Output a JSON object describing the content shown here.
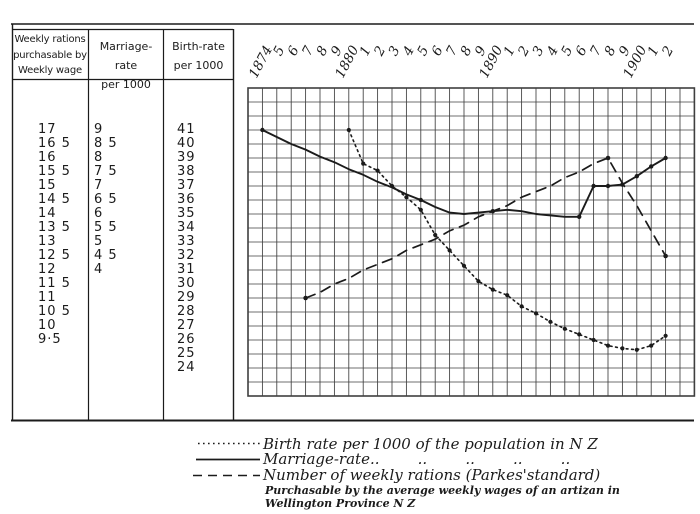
{
  "table": {
    "columns": [
      {
        "header_lines": [
          "Weekly rations",
          "purchasable by",
          "Weekly wage"
        ],
        "values": [
          "17",
          "16 5",
          "16",
          "15 5",
          "15",
          "14 5",
          "14",
          "13 5",
          "13",
          "12 5",
          "12",
          "11 5",
          "11",
          "10 5",
          "10",
          "9·5"
        ]
      },
      {
        "header_lines": [
          "Marriage-rate",
          "per 1000"
        ],
        "values": [
          "9",
          "8 5",
          "8",
          "7 5",
          "7",
          "6 5",
          "6",
          "5 5",
          "5",
          "4 5",
          "4"
        ]
      },
      {
        "header_lines": [
          "Birth-rate",
          "per 1000"
        ],
        "values": [
          "41",
          "40",
          "39",
          "38",
          "37",
          "36",
          "35",
          "34",
          "33",
          "32",
          "31",
          "30",
          "29",
          "28",
          "27",
          "26",
          "25",
          "24"
        ]
      }
    ]
  },
  "chart_data": {
    "type": "line",
    "title": "",
    "x_range": [
      1874,
      1902
    ],
    "x_labels": [
      "1874",
      "5",
      "6",
      "7",
      "8",
      "9",
      "1880",
      "1",
      "2",
      "3",
      "4",
      "5",
      "6",
      "7",
      "8",
      "9",
      "1890",
      "1",
      "2",
      "3",
      "4",
      "5",
      "6",
      "7",
      "8",
      "9",
      "1900",
      "1",
      "2"
    ],
    "grid": true,
    "y_scales": [
      {
        "name": "Weekly rations purchasable by weekly wage",
        "min": 9.5,
        "max": 17,
        "step": 0.5
      },
      {
        "name": "Marriage-rate per 1000",
        "min": 4,
        "max": 9,
        "step": 0.5
      },
      {
        "name": "Birth-rate per 1000",
        "min": 24,
        "max": 41,
        "step": 1
      }
    ],
    "series": [
      {
        "id": "birth_rate",
        "name": "Birth rate per 1000 of the population in N Z",
        "style": "dotted",
        "scale": "birth",
        "years": [
          1880,
          1881,
          1882,
          1883,
          1884,
          1885,
          1886,
          1887,
          1888,
          1889,
          1890,
          1891,
          1892,
          1893,
          1894,
          1895,
          1896,
          1897,
          1898,
          1899,
          1900,
          1901,
          1902
        ],
        "values": [
          41,
          38.6,
          38.1,
          37,
          36.2,
          35.3,
          33.5,
          32.4,
          31.3,
          30.2,
          29.6,
          29.2,
          28.4,
          27.9,
          27.3,
          26.8,
          26.4,
          26,
          25.6,
          25.4,
          25.3,
          25.6,
          26.3
        ]
      },
      {
        "id": "marriage_rate",
        "name": "Marriage-rate per 1000",
        "style": "solid",
        "scale": "marriage",
        "years": [
          1874,
          1875,
          1876,
          1877,
          1878,
          1879,
          1880,
          1881,
          1882,
          1883,
          1884,
          1885,
          1886,
          1887,
          1888,
          1889,
          1890,
          1891,
          1892,
          1893,
          1894,
          1895,
          1896,
          1897,
          1898,
          1899,
          1900,
          1901,
          1902
        ],
        "values": [
          9,
          8.75,
          8.5,
          8.3,
          8.05,
          7.85,
          7.6,
          7.4,
          7.15,
          6.95,
          6.7,
          6.5,
          6.25,
          6.05,
          6,
          6.05,
          6.1,
          6.15,
          6.1,
          6,
          5.95,
          5.9,
          5.9,
          7,
          7,
          7.05,
          7.35,
          7.7,
          8
        ],
        "dot_years": [
          1874,
          1885,
          1890,
          1896,
          1897,
          1898,
          1899,
          1900,
          1901,
          1902
        ]
      },
      {
        "id": "weekly_rations",
        "name": "Number of weekly rations (Parkes'standard)",
        "style": "dashed",
        "scale": "rations",
        "years": [
          1877,
          1878,
          1879,
          1880,
          1881,
          1882,
          1883,
          1884,
          1885,
          1886,
          1887,
          1888,
          1889,
          1890,
          1891,
          1892,
          1893,
          1894,
          1895,
          1896,
          1897,
          1898,
          1899,
          1900,
          1901,
          1902
        ],
        "values": [
          11,
          11.2,
          11.5,
          11.7,
          12,
          12.2,
          12.4,
          12.7,
          12.9,
          13.1,
          13.4,
          13.6,
          13.9,
          14.1,
          14.3,
          14.6,
          14.8,
          15,
          15.3,
          15.5,
          15.8,
          16,
          15.1,
          14.3,
          13.4,
          12.5
        ],
        "dot_years": [
          1877,
          1898,
          1902
        ]
      }
    ]
  },
  "legend": {
    "items": [
      {
        "style": "dotted",
        "label": "Birth rate per 1000 of the population in N Z"
      },
      {
        "style": "solid",
        "label": "Marriage-rate",
        "dittos": "..        ..        ..        ..        .."
      },
      {
        "style": "dashed",
        "label": "Number of weekly rations (Parkes'standard)"
      }
    ],
    "footnote_lines": [
      "Purchasable by the average weekly wages of an artizan in",
      "Wellington Province N Z"
    ]
  },
  "colors": {
    "ink": "#1b1b1b",
    "grid": "#3f3f3f",
    "paper": "#ffffff"
  }
}
